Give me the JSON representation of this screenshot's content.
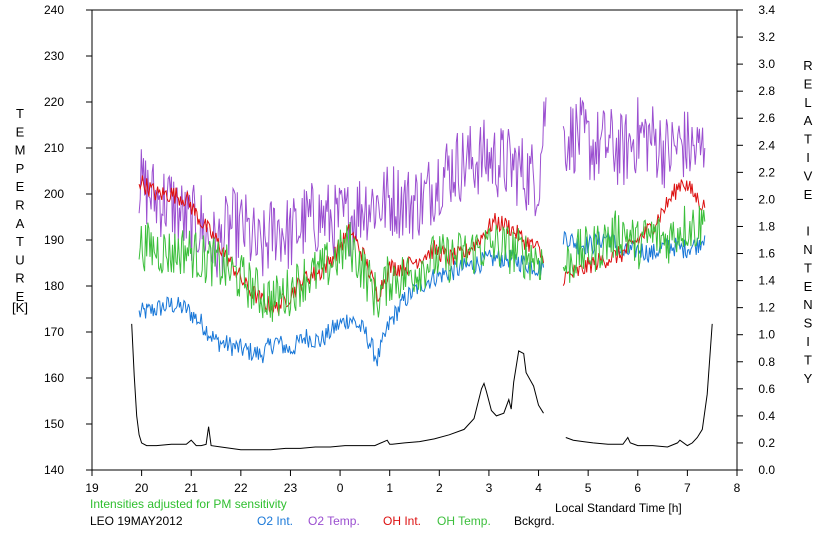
{
  "chart_data": {
    "type": "line",
    "title": "",
    "xlabel": "Local Standard Time [h]",
    "ylabel_left": "TEMPERATURE",
    "ylabel_left_unit": "[K]",
    "ylabel_right": "RELATIVE INTENSITY",
    "xlim": [
      19,
      32
    ],
    "ylim_left": [
      140,
      240
    ],
    "ylim_right": [
      0.0,
      3.4
    ],
    "x_ticks": [
      {
        "v": 19,
        "label": "19"
      },
      {
        "v": 20,
        "label": "20"
      },
      {
        "v": 21,
        "label": "21"
      },
      {
        "v": 22,
        "label": "22"
      },
      {
        "v": 23,
        "label": "23"
      },
      {
        "v": 24,
        "label": "0"
      },
      {
        "v": 25,
        "label": "1"
      },
      {
        "v": 26,
        "label": "2"
      },
      {
        "v": 27,
        "label": "3"
      },
      {
        "v": 28,
        "label": "4"
      },
      {
        "v": 29,
        "label": "5"
      },
      {
        "v": 30,
        "label": "6"
      },
      {
        "v": 31,
        "label": "7"
      },
      {
        "v": 32,
        "label": "8"
      }
    ],
    "y_left_ticks": [
      "140",
      "150",
      "160",
      "170",
      "180",
      "190",
      "200",
      "210",
      "220",
      "230",
      "240"
    ],
    "y_right_ticks": [
      "0.0",
      "0.2",
      "0.4",
      "0.6",
      "0.8",
      "1.0",
      "1.2",
      "1.4",
      "1.6",
      "1.8",
      "2.0",
      "2.2",
      "2.4",
      "2.6",
      "2.8",
      "3.0",
      "3.2",
      "3.4"
    ],
    "grid": false,
    "note": "Intensities adjusted for PM sensitivity",
    "station": "LEO 19MAY2012",
    "series": [
      {
        "name": "O2 Int.",
        "color": "#1a78d8",
        "axis": "left",
        "x": [
          19.95,
          20.3,
          20.6,
          20.9,
          21.2,
          21.5,
          21.8,
          22.1,
          22.4,
          22.7,
          23.0,
          23.3,
          23.6,
          23.9,
          24.2,
          24.5,
          24.75,
          25.0,
          25.3,
          25.6,
          25.9,
          26.2,
          26.5,
          26.8,
          27.1,
          27.4,
          27.7,
          28.0,
          28.1,
          null,
          28.5,
          28.8,
          29.1,
          29.4,
          29.7,
          30.0,
          30.3,
          30.6,
          30.9,
          31.2,
          31.35
        ],
        "y": [
          174,
          175,
          176,
          175,
          172,
          168,
          167,
          166,
          165,
          168,
          166,
          169,
          168,
          171,
          173,
          170,
          164,
          172,
          177,
          180,
          182,
          183,
          184,
          185,
          186,
          186,
          185,
          184,
          184,
          null,
          191,
          189,
          189,
          191,
          187,
          188,
          187,
          189,
          188,
          189,
          191
        ]
      },
      {
        "name": "O2 Temp.",
        "color": "#9b4fd0",
        "axis": "left",
        "x": [
          19.95,
          20.3,
          20.6,
          20.9,
          21.2,
          21.5,
          21.8,
          22.1,
          22.4,
          22.7,
          23.0,
          23.3,
          23.6,
          23.9,
          24.2,
          24.5,
          24.8,
          25.1,
          25.4,
          25.7,
          26.0,
          26.3,
          26.6,
          26.9,
          27.2,
          27.5,
          27.8,
          28.0,
          28.15,
          null,
          28.5,
          28.8,
          29.1,
          29.4,
          29.7,
          30.0,
          30.3,
          30.6,
          30.9,
          31.2,
          31.35
        ],
        "y": [
          202,
          199,
          198,
          194,
          193,
          188,
          193,
          192,
          187,
          193,
          191,
          194,
          195,
          194,
          195,
          198,
          198,
          199,
          198,
          199,
          204,
          206,
          207,
          208,
          207,
          206,
          204,
          203,
          221,
          null,
          212,
          213,
          210,
          211,
          209,
          213,
          212,
          209,
          211,
          209,
          210
        ]
      },
      {
        "name": "OH Int.",
        "color": "#dd1010",
        "axis": "left",
        "x": [
          19.95,
          20.3,
          20.6,
          20.9,
          21.2,
          21.5,
          21.8,
          22.1,
          22.4,
          22.7,
          23.0,
          23.3,
          23.6,
          23.9,
          24.2,
          24.5,
          24.75,
          25.0,
          25.3,
          25.6,
          25.9,
          26.2,
          26.5,
          26.8,
          27.1,
          27.4,
          27.7,
          28.0,
          28.1,
          null,
          28.5,
          28.8,
          29.1,
          29.4,
          29.7,
          30.0,
          30.3,
          30.6,
          30.9,
          31.2,
          31.35
        ],
        "y": [
          203,
          200,
          200,
          199,
          194,
          190,
          185,
          180,
          177,
          175,
          178,
          182,
          183,
          187,
          192,
          186,
          178,
          184,
          184,
          186,
          188,
          186,
          187,
          190,
          194,
          193,
          190,
          188,
          185,
          null,
          182,
          183,
          185,
          186,
          187,
          190,
          193,
          198,
          203,
          199,
          197
        ]
      },
      {
        "name": "OH Temp.",
        "color": "#3cbf3c",
        "axis": "left",
        "x": [
          19.95,
          20.3,
          20.6,
          20.9,
          21.2,
          21.5,
          21.8,
          22.1,
          22.4,
          22.7,
          23.0,
          23.3,
          23.6,
          23.9,
          24.2,
          24.5,
          24.75,
          25.0,
          25.3,
          25.6,
          25.9,
          26.2,
          26.5,
          26.8,
          27.1,
          27.4,
          27.7,
          28.0,
          28.1,
          null,
          28.5,
          28.8,
          29.1,
          29.4,
          29.7,
          30.0,
          30.3,
          30.6,
          30.9,
          31.2,
          31.35
        ],
        "y": [
          189,
          188,
          187,
          188,
          186,
          185,
          183,
          181,
          178,
          177,
          179,
          182,
          183,
          186,
          189,
          183,
          177,
          182,
          182,
          184,
          186,
          186,
          187,
          188,
          189,
          188,
          187,
          186,
          185,
          null,
          184,
          187,
          188,
          190,
          192,
          189,
          191,
          190,
          193,
          193,
          194
        ]
      },
      {
        "name": "Bckgrd.",
        "color": "#000000",
        "axis": "right",
        "x": [
          19.8,
          19.85,
          19.9,
          19.95,
          20.0,
          20.1,
          20.3,
          20.6,
          20.9,
          21.0,
          21.1,
          21.2,
          21.3,
          21.35,
          21.4,
          21.6,
          21.8,
          22.0,
          22.3,
          22.6,
          22.9,
          23.2,
          23.5,
          23.8,
          24.1,
          24.4,
          24.7,
          24.95,
          25.0,
          25.05,
          25.3,
          25.6,
          25.9,
          26.2,
          26.5,
          26.7,
          26.85,
          26.9,
          26.95,
          27.05,
          27.15,
          27.3,
          27.4,
          27.45,
          27.5,
          27.6,
          27.7,
          27.75,
          27.9,
          28.0,
          28.1,
          null,
          28.55,
          28.7,
          28.9,
          29.1,
          29.4,
          29.7,
          29.8,
          29.85,
          30.0,
          30.3,
          30.6,
          30.8,
          30.85,
          31.0,
          31.1,
          31.2,
          31.3,
          31.4,
          31.5
        ],
        "y": [
          1.08,
          0.7,
          0.4,
          0.26,
          0.2,
          0.18,
          0.18,
          0.19,
          0.19,
          0.22,
          0.18,
          0.18,
          0.19,
          0.32,
          0.18,
          0.17,
          0.16,
          0.15,
          0.15,
          0.15,
          0.16,
          0.16,
          0.17,
          0.17,
          0.18,
          0.18,
          0.18,
          0.22,
          0.19,
          0.19,
          0.2,
          0.21,
          0.23,
          0.26,
          0.3,
          0.38,
          0.6,
          0.64,
          0.58,
          0.44,
          0.4,
          0.42,
          0.52,
          0.45,
          0.65,
          0.88,
          0.86,
          0.72,
          0.62,
          0.48,
          0.42,
          null,
          0.24,
          0.22,
          0.21,
          0.2,
          0.19,
          0.19,
          0.24,
          0.2,
          0.18,
          0.18,
          0.17,
          0.2,
          0.22,
          0.18,
          0.2,
          0.24,
          0.3,
          0.56,
          1.08
        ]
      }
    ]
  }
}
